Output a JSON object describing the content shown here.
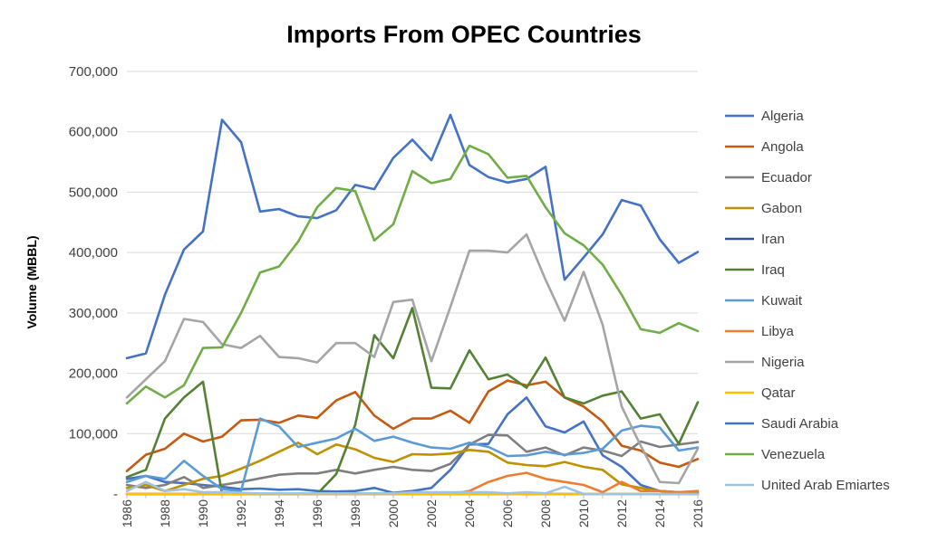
{
  "chart_data": {
    "type": "line",
    "title": "Imports From OPEC Countries",
    "ylabel": "Volume (MBBL)",
    "xlabel": "",
    "ylim": [
      0,
      700000
    ],
    "yticks": [
      0,
      100000,
      200000,
      300000,
      400000,
      500000,
      600000,
      700000
    ],
    "ytick_labels": [
      "-",
      "100,000",
      "200,000",
      "300,000",
      "400,000",
      "500,000",
      "600,000",
      "700,000"
    ],
    "x": [
      1986,
      1987,
      1988,
      1989,
      1990,
      1991,
      1992,
      1993,
      1994,
      1995,
      1996,
      1997,
      1998,
      1999,
      2000,
      2001,
      2002,
      2003,
      2004,
      2005,
      2006,
      2007,
      2008,
      2009,
      2010,
      2011,
      2012,
      2013,
      2014,
      2015,
      2016
    ],
    "xtick_labels": [
      "1986",
      "1988",
      "1990",
      "1992",
      "1994",
      "1996",
      "1998",
      "2000",
      "2002",
      "2004",
      "2006",
      "2008",
      "2010",
      "2012",
      "2014",
      "2016"
    ],
    "grid": true,
    "legend_position": "right",
    "series": [
      {
        "name": "Algeria",
        "color": "#4472c4",
        "values": [
          25000,
          30000,
          20000,
          18000,
          15000,
          12000,
          8000,
          9000,
          7000,
          8000,
          5000,
          4000,
          5000,
          10000,
          2000,
          5000,
          10000,
          40000,
          82000,
          83000,
          132000,
          160000,
          112000,
          102000,
          120000,
          64000,
          45000,
          15000,
          5000,
          3000,
          3000
        ]
      },
      {
        "name": "Angola",
        "color": "#c55a11",
        "values": [
          38000,
          65000,
          75000,
          100000,
          87000,
          95000,
          122000,
          123000,
          118000,
          130000,
          126000,
          155000,
          169000,
          130000,
          108000,
          125000,
          125000,
          138000,
          118000,
          170000,
          188000,
          180000,
          186000,
          160000,
          145000,
          120000,
          80000,
          72000,
          52000,
          45000,
          58000
        ]
      },
      {
        "name": "Ecuador",
        "color": "#7f7f7f",
        "values": [
          15000,
          10000,
          15000,
          28000,
          10000,
          15000,
          20000,
          26000,
          32000,
          34000,
          34000,
          40000,
          34000,
          40000,
          45000,
          40000,
          38000,
          50000,
          82000,
          98000,
          97000,
          70000,
          77000,
          64000,
          77000,
          72000,
          63000,
          87000,
          78000,
          82000,
          86000
        ]
      },
      {
        "name": "Gabon",
        "color": "#bf9000",
        "values": [
          10000,
          15000,
          5000,
          15000,
          25000,
          30000,
          42000,
          55000,
          70000,
          85000,
          66000,
          82000,
          74000,
          60000,
          53000,
          66000,
          65000,
          67000,
          73000,
          70000,
          52000,
          48000,
          46000,
          53000,
          45000,
          40000,
          16000,
          10000,
          5000,
          2000,
          1000
        ]
      },
      {
        "name": "Iran",
        "color": "#2f5597",
        "values": [
          0,
          0,
          0,
          0,
          0,
          0,
          0,
          0,
          0,
          0,
          0,
          0,
          0,
          0,
          0,
          0,
          0,
          0,
          0,
          0,
          0,
          0,
          0,
          0,
          0,
          0,
          0,
          0,
          0,
          0,
          0
        ]
      },
      {
        "name": "Iraq",
        "color": "#548235",
        "values": [
          28000,
          40000,
          125000,
          160000,
          186000,
          0,
          0,
          0,
          0,
          0,
          0,
          33000,
          115000,
          263000,
          225000,
          308000,
          176000,
          175000,
          238000,
          190000,
          198000,
          176000,
          226000,
          160000,
          150000,
          163000,
          170000,
          125000,
          132000,
          83000,
          152000
        ]
      },
      {
        "name": "Kuwait",
        "color": "#5b9bd5",
        "values": [
          20000,
          30000,
          25000,
          55000,
          30000,
          8000,
          5000,
          125000,
          112000,
          78000,
          85000,
          92000,
          108000,
          88000,
          95000,
          85000,
          77000,
          75000,
          85000,
          78000,
          63000,
          64000,
          70000,
          65000,
          68000,
          75000,
          105000,
          113000,
          110000,
          72000,
          77000
        ]
      },
      {
        "name": "Libya",
        "color": "#ed7d31",
        "values": [
          0,
          0,
          0,
          0,
          0,
          0,
          0,
          0,
          0,
          0,
          0,
          0,
          0,
          0,
          0,
          0,
          0,
          0,
          5000,
          20000,
          30000,
          35000,
          25000,
          20000,
          15000,
          3000,
          20000,
          5000,
          5000,
          3000,
          5000
        ]
      },
      {
        "name": "Nigeria",
        "color": "#a5a5a5",
        "values": [
          160000,
          190000,
          220000,
          290000,
          285000,
          248000,
          242000,
          262000,
          227000,
          225000,
          218000,
          250000,
          250000,
          227000,
          318000,
          322000,
          220000,
          310000,
          403000,
          403000,
          400000,
          430000,
          355000,
          287000,
          368000,
          280000,
          145000,
          80000,
          20000,
          18000,
          75000
        ]
      },
      {
        "name": "Qatar",
        "color": "#ffc000",
        "values": [
          0,
          0,
          0,
          0,
          0,
          0,
          0,
          0,
          0,
          0,
          0,
          0,
          0,
          0,
          0,
          0,
          0,
          0,
          0,
          0,
          0,
          0,
          0,
          0,
          0,
          0,
          0,
          0,
          0,
          0,
          0
        ]
      },
      {
        "name": "Saudi Arabia",
        "color": "#4472c4",
        "values": [
          225000,
          233000,
          330000,
          405000,
          435000,
          620000,
          583000,
          468000,
          472000,
          460000,
          457000,
          470000,
          512000,
          505000,
          557000,
          587000,
          553000,
          628000,
          545000,
          525000,
          516000,
          522000,
          542000,
          355000,
          392000,
          430000,
          487000,
          478000,
          422000,
          383000,
          401000
        ]
      },
      {
        "name": "Venezuela",
        "color": "#70ad47",
        "values": [
          150000,
          178000,
          160000,
          180000,
          242000,
          243000,
          300000,
          367000,
          377000,
          418000,
          475000,
          507000,
          502000,
          420000,
          447000,
          535000,
          515000,
          522000,
          577000,
          563000,
          524000,
          527000,
          475000,
          432000,
          412000,
          380000,
          330000,
          273000,
          267000,
          283000,
          270000
        ]
      },
      {
        "name": "United Arab Emiartes",
        "color": "#9dc3e6",
        "values": [
          5000,
          20000,
          5000,
          8000,
          3000,
          3000,
          2000,
          1000,
          1000,
          1000,
          1000,
          1000,
          1000,
          1000,
          1000,
          3000,
          3000,
          3000,
          3000,
          3000,
          1000,
          3000,
          1000,
          12000,
          0,
          0,
          0,
          0,
          0,
          0,
          0
        ]
      }
    ]
  }
}
